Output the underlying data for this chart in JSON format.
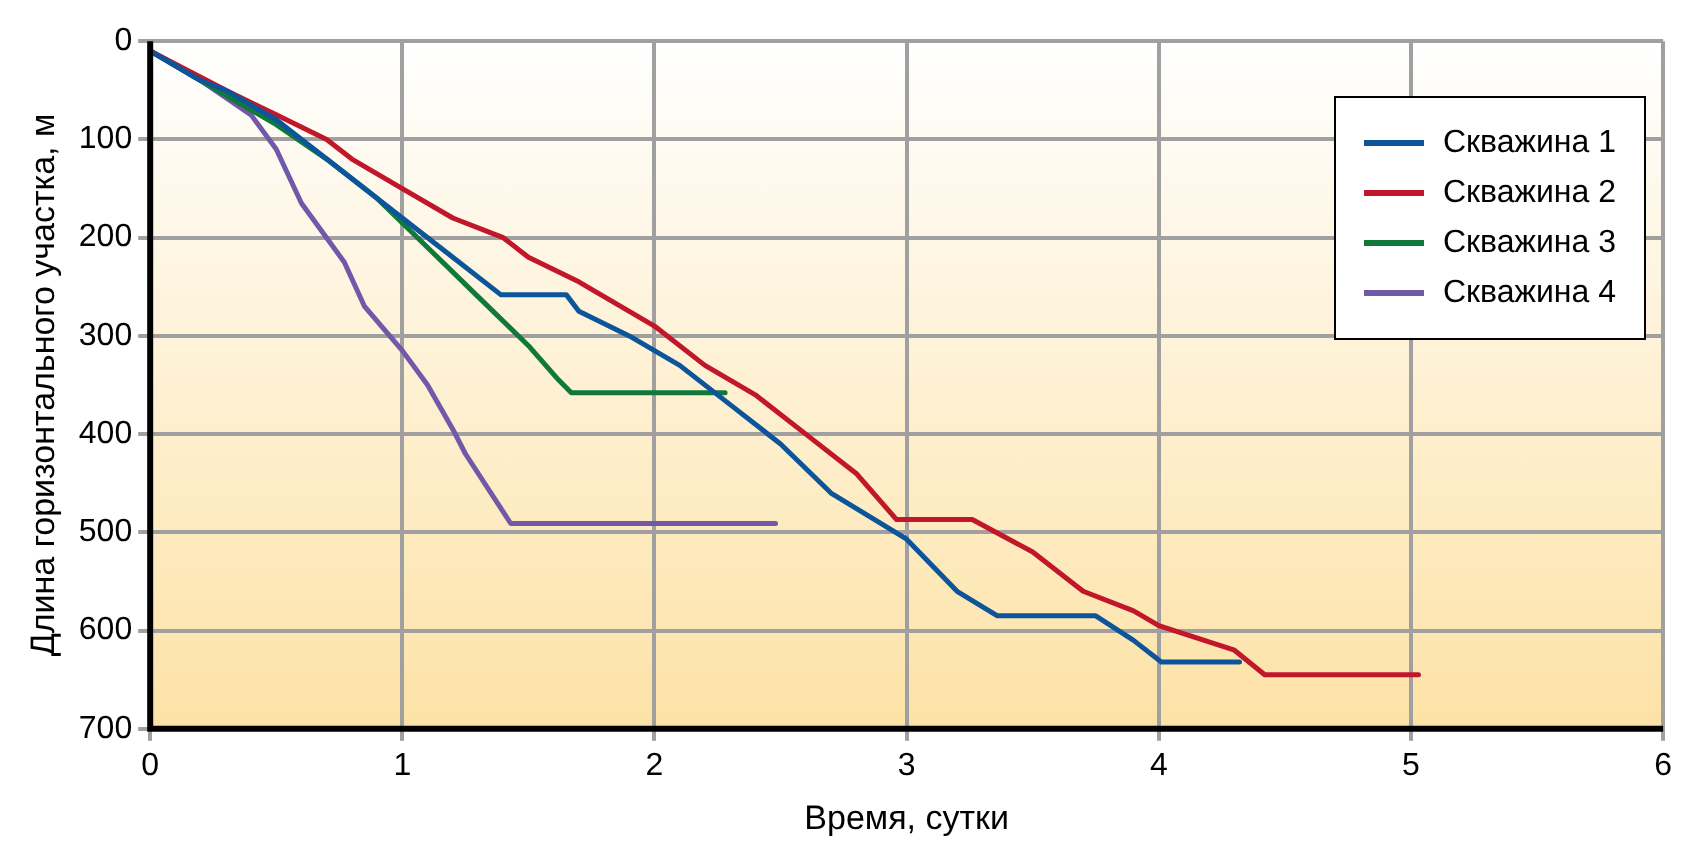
{
  "chart_data": {
    "type": "line",
    "xlabel": "Время, сутки",
    "ylabel": "Длина горизонтального участка, м",
    "xlim": [
      0,
      6
    ],
    "xticks": [
      0,
      1,
      2,
      3,
      4,
      5,
      6
    ],
    "ylim": [
      700,
      0
    ],
    "yticks": [
      0,
      100,
      200,
      300,
      400,
      500,
      600,
      700
    ],
    "grid": true,
    "legend": "top right",
    "marker": "none",
    "line_style": "solid",
    "series": [
      {
        "name": "Скважина 1",
        "color": "#0d559b",
        "x": [
          0,
          0.2,
          0.3,
          0.5,
          0.7,
          1.0,
          1.2,
          1.39,
          1.65,
          1.7,
          1.9,
          2.1,
          2.3,
          2.5,
          2.7,
          3.0,
          3.2,
          3.36,
          3.75,
          3.9,
          4.01,
          4.32
        ],
        "values": [
          10,
          40,
          50,
          80,
          120,
          180,
          220,
          258,
          258,
          275,
          300,
          330,
          370,
          410,
          460,
          507,
          560,
          585,
          585,
          610,
          632,
          632
        ]
      },
      {
        "name": "Скважина 2",
        "color": "#c0182a",
        "x": [
          0,
          0.3,
          0.5,
          0.7,
          0.8,
          1.0,
          1.2,
          1.4,
          1.5,
          1.7,
          2.0,
          2.2,
          2.4,
          2.6,
          2.8,
          2.96,
          3.26,
          3.5,
          3.7,
          3.9,
          4.0,
          4.3,
          4.42,
          5.03
        ],
        "values": [
          10,
          50,
          75,
          100,
          120,
          150,
          180,
          200,
          220,
          245,
          290,
          330,
          360,
          400,
          440,
          487,
          487,
          520,
          560,
          580,
          595,
          620,
          645,
          645
        ]
      },
      {
        "name": "Скважина 3",
        "color": "#10793a",
        "x": [
          0,
          0.3,
          0.5,
          0.7,
          0.9,
          1.1,
          1.3,
          1.5,
          1.62,
          1.67,
          2.28
        ],
        "values": [
          10,
          55,
          85,
          120,
          160,
          210,
          260,
          310,
          345,
          358,
          358
        ]
      },
      {
        "name": "Скважина 4",
        "color": "#7258a8",
        "x": [
          0,
          0.2,
          0.4,
          0.5,
          0.6,
          0.77,
          0.85,
          1.0,
          1.1,
          1.2,
          1.25,
          1.43,
          2.48
        ],
        "values": [
          10,
          40,
          75,
          110,
          165,
          225,
          270,
          315,
          350,
          395,
          420,
          491,
          491
        ]
      }
    ]
  }
}
